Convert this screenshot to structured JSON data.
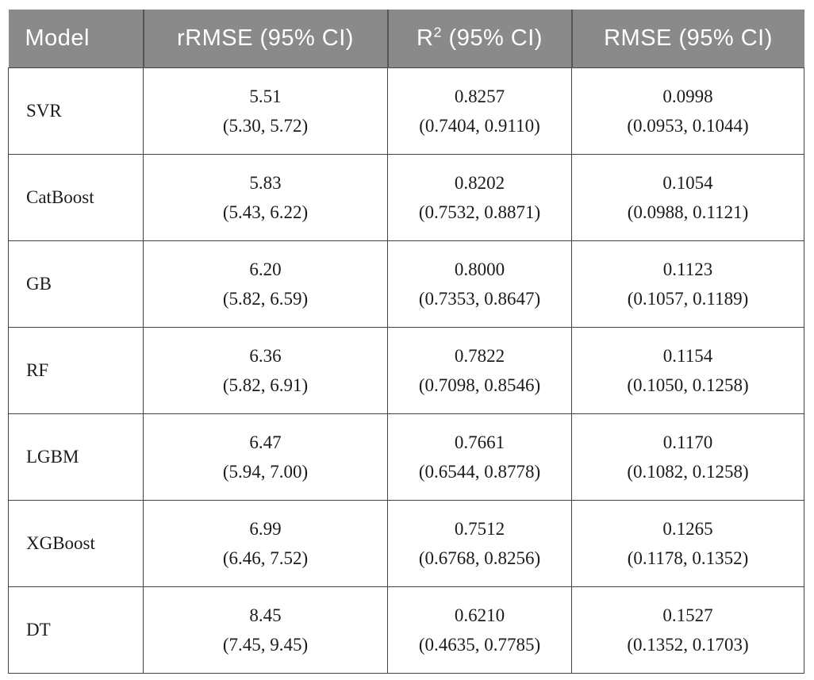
{
  "table": {
    "header": {
      "model": "Model",
      "rrmse": "rRMSE (95% CI)",
      "r2_base": "R",
      "r2_sup": "2",
      "r2_rest": " (95% CI)",
      "rmse": "RMSE (95% CI)"
    },
    "rows": [
      {
        "model": "SVR",
        "rrmse": "5.51",
        "rrmse_ci": "(5.30, 5.72)",
        "r2": "0.8257",
        "r2_ci": "(0.7404, 0.9110)",
        "rmse": "0.0998",
        "rmse_ci": "(0.0953, 0.1044)"
      },
      {
        "model": "CatBoost",
        "rrmse": "5.83",
        "rrmse_ci": "(5.43, 6.22)",
        "r2": "0.8202",
        "r2_ci": "(0.7532, 0.8871)",
        "rmse": "0.1054",
        "rmse_ci": "(0.0988, 0.1121)"
      },
      {
        "model": "GB",
        "rrmse": "6.20",
        "rrmse_ci": "(5.82, 6.59)",
        "r2": "0.8000",
        "r2_ci": "(0.7353, 0.8647)",
        "rmse": "0.1123",
        "rmse_ci": "(0.1057, 0.1189)"
      },
      {
        "model": "RF",
        "rrmse": "6.36",
        "rrmse_ci": "(5.82, 6.91)",
        "r2": "0.7822",
        "r2_ci": "(0.7098, 0.8546)",
        "rmse": "0.1154",
        "rmse_ci": "(0.1050, 0.1258)"
      },
      {
        "model": "LGBM",
        "rrmse": "6.47",
        "rrmse_ci": "(5.94, 7.00)",
        "r2": "0.7661",
        "r2_ci": "(0.6544, 0.8778)",
        "rmse": "0.1170",
        "rmse_ci": "(0.1082, 0.1258)"
      },
      {
        "model": "XGBoost",
        "rrmse": "6.99",
        "rrmse_ci": "(6.46, 7.52)",
        "r2": "0.7512",
        "r2_ci": "(0.6768, 0.8256)",
        "rmse": "0.1265",
        "rmse_ci": "(0.1178, 0.1352)"
      },
      {
        "model": "DT",
        "rrmse": "8.45",
        "rrmse_ci": "(7.45, 9.45)",
        "r2": "0.6210",
        "r2_ci": "(0.4635, 0.7785)",
        "rmse": "0.1527",
        "rmse_ci": "(0.1352, 0.1703)"
      }
    ]
  },
  "colors": {
    "header_bg": "#8a8a8a",
    "header_text": "#ffffff",
    "header_divider": "#565656",
    "body_border": "#434343",
    "body_text": "#1b1b1b",
    "page_bg": "#ffffff"
  }
}
